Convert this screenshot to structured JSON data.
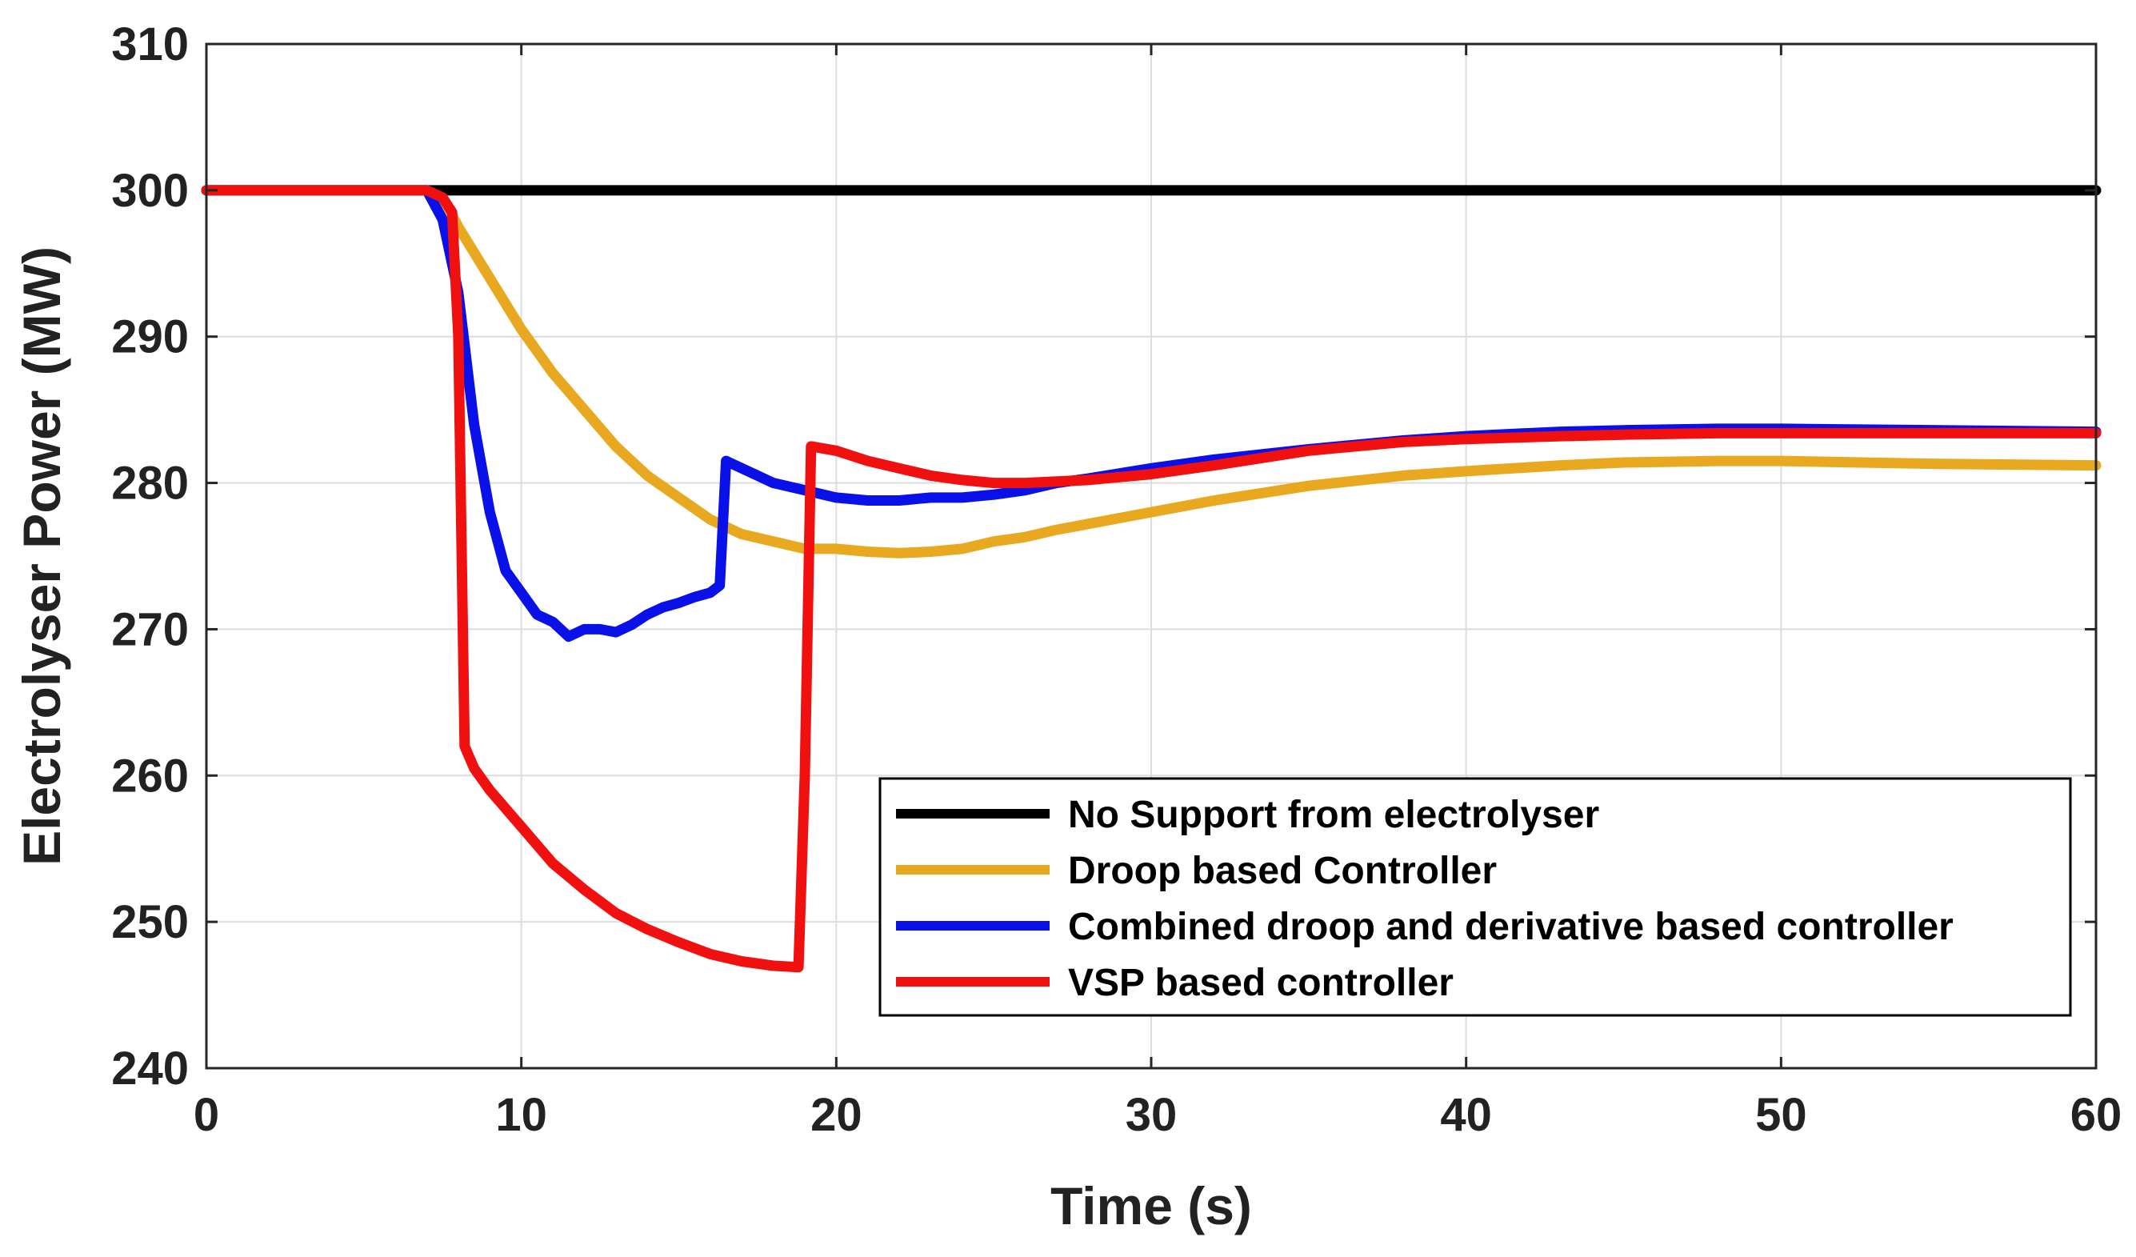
{
  "chart_data": {
    "type": "line",
    "title": "",
    "xlabel": "Time (s)",
    "ylabel": "Electrolyser Power (MW)",
    "xlim": [
      0,
      60
    ],
    "ylim": [
      240,
      310
    ],
    "xticks": [
      0,
      10,
      20,
      30,
      40,
      50,
      60
    ],
    "yticks": [
      240,
      250,
      260,
      270,
      280,
      290,
      300,
      310
    ],
    "grid": true,
    "legend_position": "bottom-right",
    "series": [
      {
        "name": "No Support from electrolyser",
        "color": "#000000",
        "x": [
          0,
          60
        ],
        "y": [
          300,
          300
        ]
      },
      {
        "name": "Droop based Controller",
        "color": "#E8A820",
        "x": [
          0,
          7,
          7.5,
          8,
          9,
          10,
          11,
          12,
          13,
          14,
          15,
          16,
          17,
          18,
          19,
          20,
          21,
          22,
          23,
          24,
          25,
          26,
          27,
          28,
          30,
          32,
          35,
          38,
          40,
          43,
          45,
          48,
          50,
          55,
          60
        ],
        "y": [
          300,
          300,
          299.5,
          297.5,
          294,
          290.5,
          287.5,
          285,
          282.5,
          280.5,
          279,
          277.5,
          276.5,
          276,
          275.5,
          275.5,
          275.3,
          275.2,
          275.3,
          275.5,
          276,
          276.3,
          276.8,
          277.2,
          278,
          278.8,
          279.8,
          280.5,
          280.8,
          281.2,
          281.4,
          281.5,
          281.5,
          281.3,
          281.2
        ]
      },
      {
        "name": "Combined droop and derivative based controller",
        "color": "#0A10E8",
        "x": [
          0,
          7,
          7.5,
          8,
          8.5,
          9,
          9.5,
          10,
          10.5,
          11,
          11.5,
          12,
          12.5,
          13,
          13.5,
          14,
          14.5,
          15,
          15.5,
          16,
          16.3,
          16.5,
          17,
          17.5,
          18,
          19,
          20,
          21,
          22,
          23,
          24,
          25,
          26,
          27,
          28,
          30,
          32,
          35,
          38,
          40,
          43,
          45,
          48,
          50,
          55,
          60
        ],
        "y": [
          300,
          300,
          298,
          293,
          284,
          278,
          274,
          272.5,
          271,
          270.5,
          269.5,
          270,
          270,
          269.8,
          270.3,
          271,
          271.5,
          271.8,
          272.2,
          272.5,
          273,
          281.5,
          281,
          280.5,
          280,
          279.5,
          279,
          278.8,
          278.8,
          279,
          279,
          279.2,
          279.5,
          280,
          280.3,
          281,
          281.6,
          282.3,
          282.9,
          283.2,
          283.5,
          283.6,
          283.7,
          283.7,
          283.6,
          283.5
        ]
      },
      {
        "name": "VSP based controller",
        "color": "#F01010",
        "x": [
          0,
          7,
          7.5,
          7.8,
          8,
          8.2,
          8.5,
          9,
          10,
          11,
          12,
          13,
          14,
          15,
          16,
          17,
          18,
          18.8,
          19,
          19.2,
          20,
          21,
          22,
          23,
          24,
          25,
          26,
          28,
          30,
          32,
          35,
          38,
          40,
          43,
          45,
          48,
          50,
          55,
          60
        ],
        "y": [
          300,
          300,
          299.5,
          298.5,
          290,
          262,
          260.5,
          259,
          256.5,
          254,
          252.2,
          250.6,
          249.5,
          248.6,
          247.8,
          247.3,
          247,
          246.9,
          260,
          282.5,
          282.2,
          281.5,
          281,
          280.5,
          280.2,
          280,
          280,
          280.2,
          280.6,
          281.2,
          282.2,
          282.8,
          283,
          283.2,
          283.3,
          283.4,
          283.4,
          283.4,
          283.4
        ]
      }
    ]
  }
}
